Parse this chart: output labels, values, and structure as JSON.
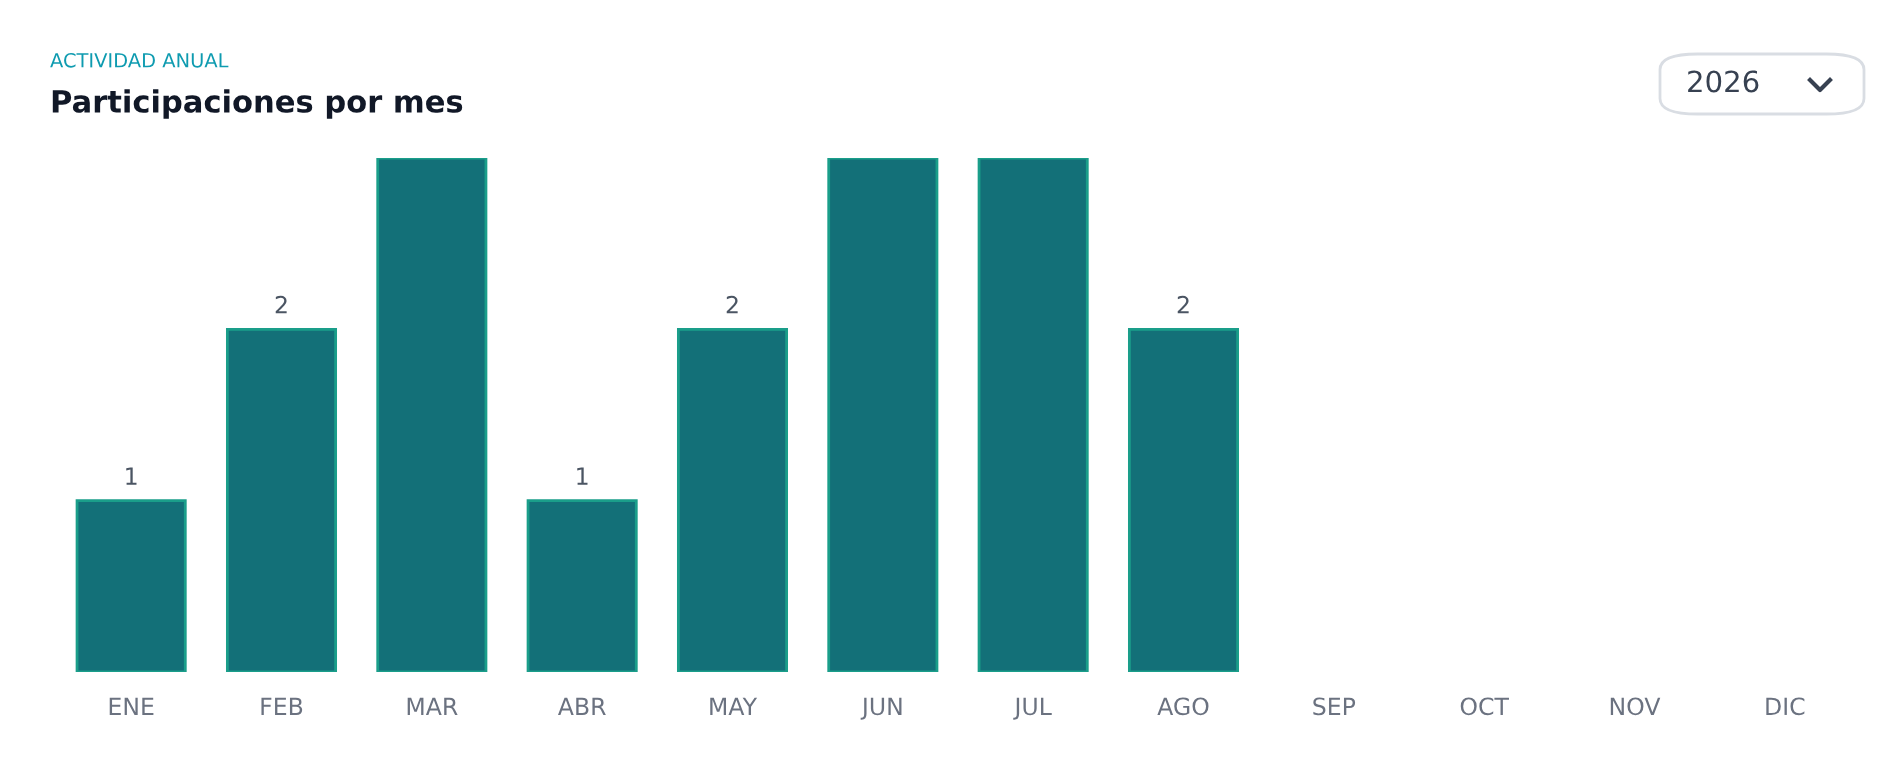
{
  "chart_data": {
    "type": "bar",
    "subtitle": "ACTIVIDAD ANUAL",
    "title": "Participaciones por mes",
    "categories": [
      "ENE",
      "FEB",
      "MAR",
      "ABR",
      "MAY",
      "JUN",
      "JUL",
      "AGO",
      "SEP",
      "OCT",
      "NOV",
      "DIC"
    ],
    "values": [
      1,
      2,
      3,
      1,
      2,
      3,
      3,
      2,
      0,
      0,
      0,
      0
    ],
    "value_labels": [
      "1",
      "2",
      null,
      "1",
      "2",
      null,
      null,
      "2",
      null,
      null,
      null,
      null
    ],
    "color": "#137078",
    "ylim": [
      0,
      3
    ],
    "grid": false,
    "legend": false,
    "annotations": [
      "2026"
    ]
  }
}
